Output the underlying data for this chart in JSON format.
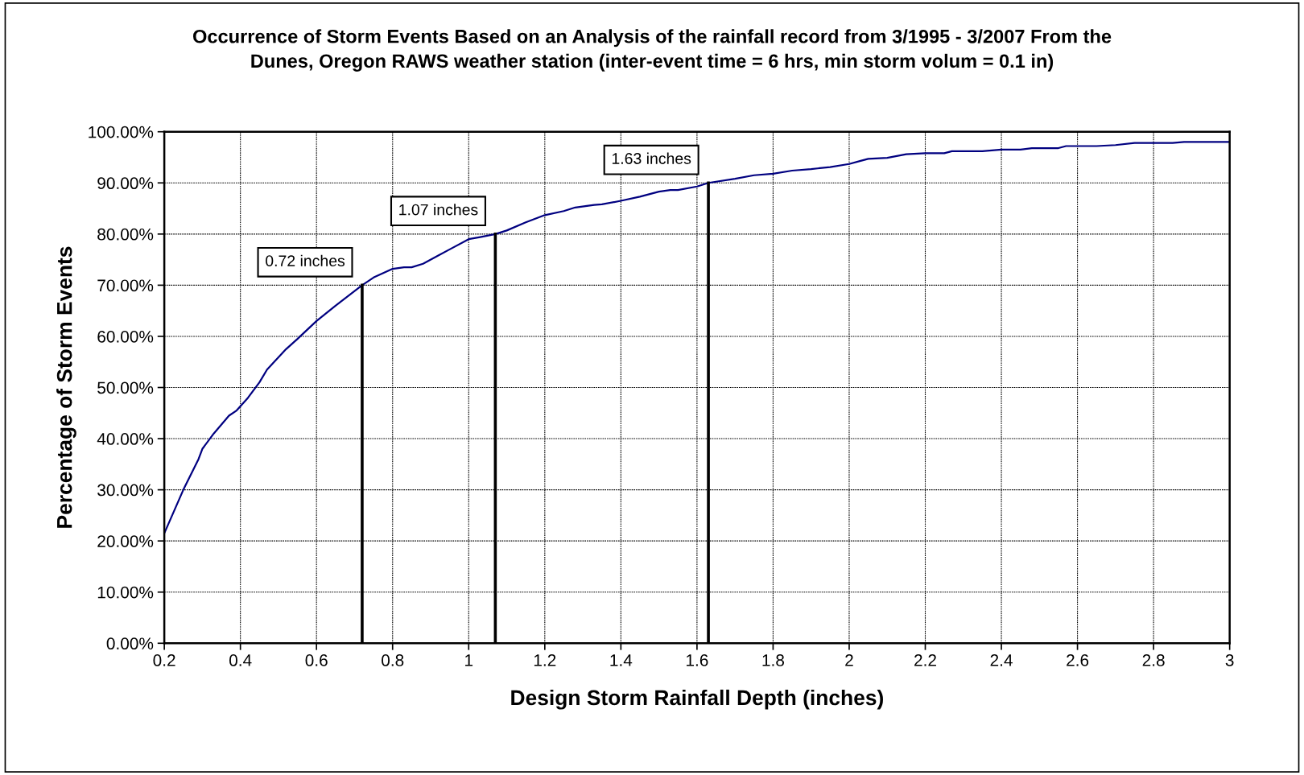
{
  "chart_data": {
    "type": "line",
    "title": "Occurrence of Storm Events Based on an Analysis of the rainfall record from 3/1995 - 3/2007 From the Dunes, Oregon RAWS weather station (inter-event time = 6 hrs, min storm volum = 0.1 in)",
    "xlabel": "Design Storm Rainfall Depth (inches)",
    "ylabel": "Percentage of Storm Events",
    "x": [
      0.2,
      0.25,
      0.29,
      0.3,
      0.33,
      0.37,
      0.39,
      0.42,
      0.45,
      0.47,
      0.52,
      0.55,
      0.6,
      0.65,
      0.72,
      0.75,
      0.8,
      0.83,
      0.85,
      0.88,
      0.92,
      0.95,
      1.0,
      1.03,
      1.07,
      1.1,
      1.15,
      1.2,
      1.25,
      1.28,
      1.33,
      1.35,
      1.4,
      1.45,
      1.5,
      1.53,
      1.55,
      1.6,
      1.63,
      1.7,
      1.75,
      1.8,
      1.85,
      1.9,
      1.95,
      2.0,
      2.03,
      2.05,
      2.1,
      2.15,
      2.2,
      2.25,
      2.27,
      2.35,
      2.4,
      2.45,
      2.48,
      2.55,
      2.57,
      2.65,
      2.7,
      2.75,
      2.85,
      2.88,
      3.0
    ],
    "series": [
      {
        "color": "#000080",
        "values": [
          21.5,
          30,
          36,
          38,
          41,
          44.5,
          45.5,
          48,
          51,
          53.5,
          57.5,
          59.5,
          63,
          66,
          70,
          71.5,
          73.2,
          73.5,
          73.5,
          74.2,
          75.8,
          77,
          79,
          79.4,
          80,
          80.7,
          82.3,
          83.7,
          84.5,
          85.2,
          85.7,
          85.8,
          86.5,
          87.3,
          88.3,
          88.6,
          88.6,
          89.3,
          90,
          90.8,
          91.5,
          91.8,
          92.4,
          92.7,
          93.1,
          93.7,
          94.3,
          94.7,
          94.9,
          95.6,
          95.8,
          95.8,
          96.2,
          96.2,
          96.5,
          96.5,
          96.8,
          96.8,
          97.2,
          97.2,
          97.4,
          97.8,
          97.8,
          98,
          98
        ]
      },
      {
        "x": [
          0.72,
          0.72
        ],
        "color": "#000000",
        "values": [
          0,
          70
        ]
      },
      {
        "x": [
          1.07,
          1.07
        ],
        "color": "#000000",
        "values": [
          0,
          80
        ]
      },
      {
        "x": [
          1.63,
          1.63
        ],
        "color": "#000000",
        "values": [
          0,
          90
        ]
      }
    ],
    "annotations": [
      {
        "text": "0.72 inches",
        "x": 0.72,
        "y": 70
      },
      {
        "text": "1.07 inches",
        "x": 1.07,
        "y": 80
      },
      {
        "text": "1.63 inches",
        "x": 1.63,
        "y": 90
      }
    ],
    "xlim": [
      0.2,
      3
    ],
    "xticks": [
      0.2,
      0.4,
      0.6,
      0.8,
      1,
      1.2,
      1.4,
      1.6,
      1.8,
      2,
      2.2,
      2.4,
      2.6,
      2.8,
      3
    ],
    "ylim": [
      0,
      100
    ],
    "yticks": [
      {
        "value": 0,
        "label": "0.00%"
      },
      {
        "value": 10,
        "label": "10.00%"
      },
      {
        "value": 20,
        "label": "20.00%"
      },
      {
        "value": 30,
        "label": "30.00%"
      },
      {
        "value": 40,
        "label": "40.00%"
      },
      {
        "value": 50,
        "label": "50.00%"
      },
      {
        "value": 60,
        "label": "60.00%"
      },
      {
        "value": 70,
        "label": "70.00%"
      },
      {
        "value": 80,
        "label": "80.00%"
      },
      {
        "value": 90,
        "label": "90.00%"
      },
      {
        "value": 100,
        "label": "100.00%"
      }
    ],
    "grid": true,
    "legend": false,
    "marker": "none",
    "line_style": "solid"
  }
}
